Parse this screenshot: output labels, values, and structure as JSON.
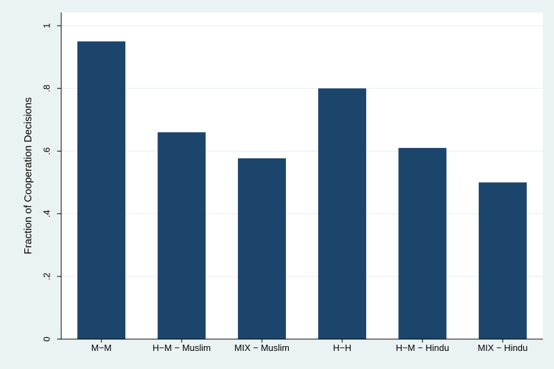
{
  "chart_data": {
    "type": "bar",
    "categories": [
      "M−M",
      "H−M − Muslim",
      "MIX − Muslim",
      "H−H",
      "H−M − Hindu",
      "MIX − Hindu"
    ],
    "values": [
      0.95,
      0.66,
      0.577,
      0.8,
      0.61,
      0.5
    ],
    "title": "",
    "xlabel": "",
    "ylabel": "Fraction of Cooperation Decisions",
    "ylim": [
      0,
      1
    ],
    "yticks": [
      0,
      0.2,
      0.4,
      0.6,
      0.8,
      1
    ],
    "ytick_labels": [
      "0",
      ".2",
      ".4",
      ".6",
      ".8",
      "1"
    ],
    "grid": true,
    "legend": "none",
    "colors": {
      "bar": "#1c456b",
      "page_background": "#eaf2f3",
      "plot_background": "#ffffff",
      "grid": "#e6eef0"
    }
  }
}
